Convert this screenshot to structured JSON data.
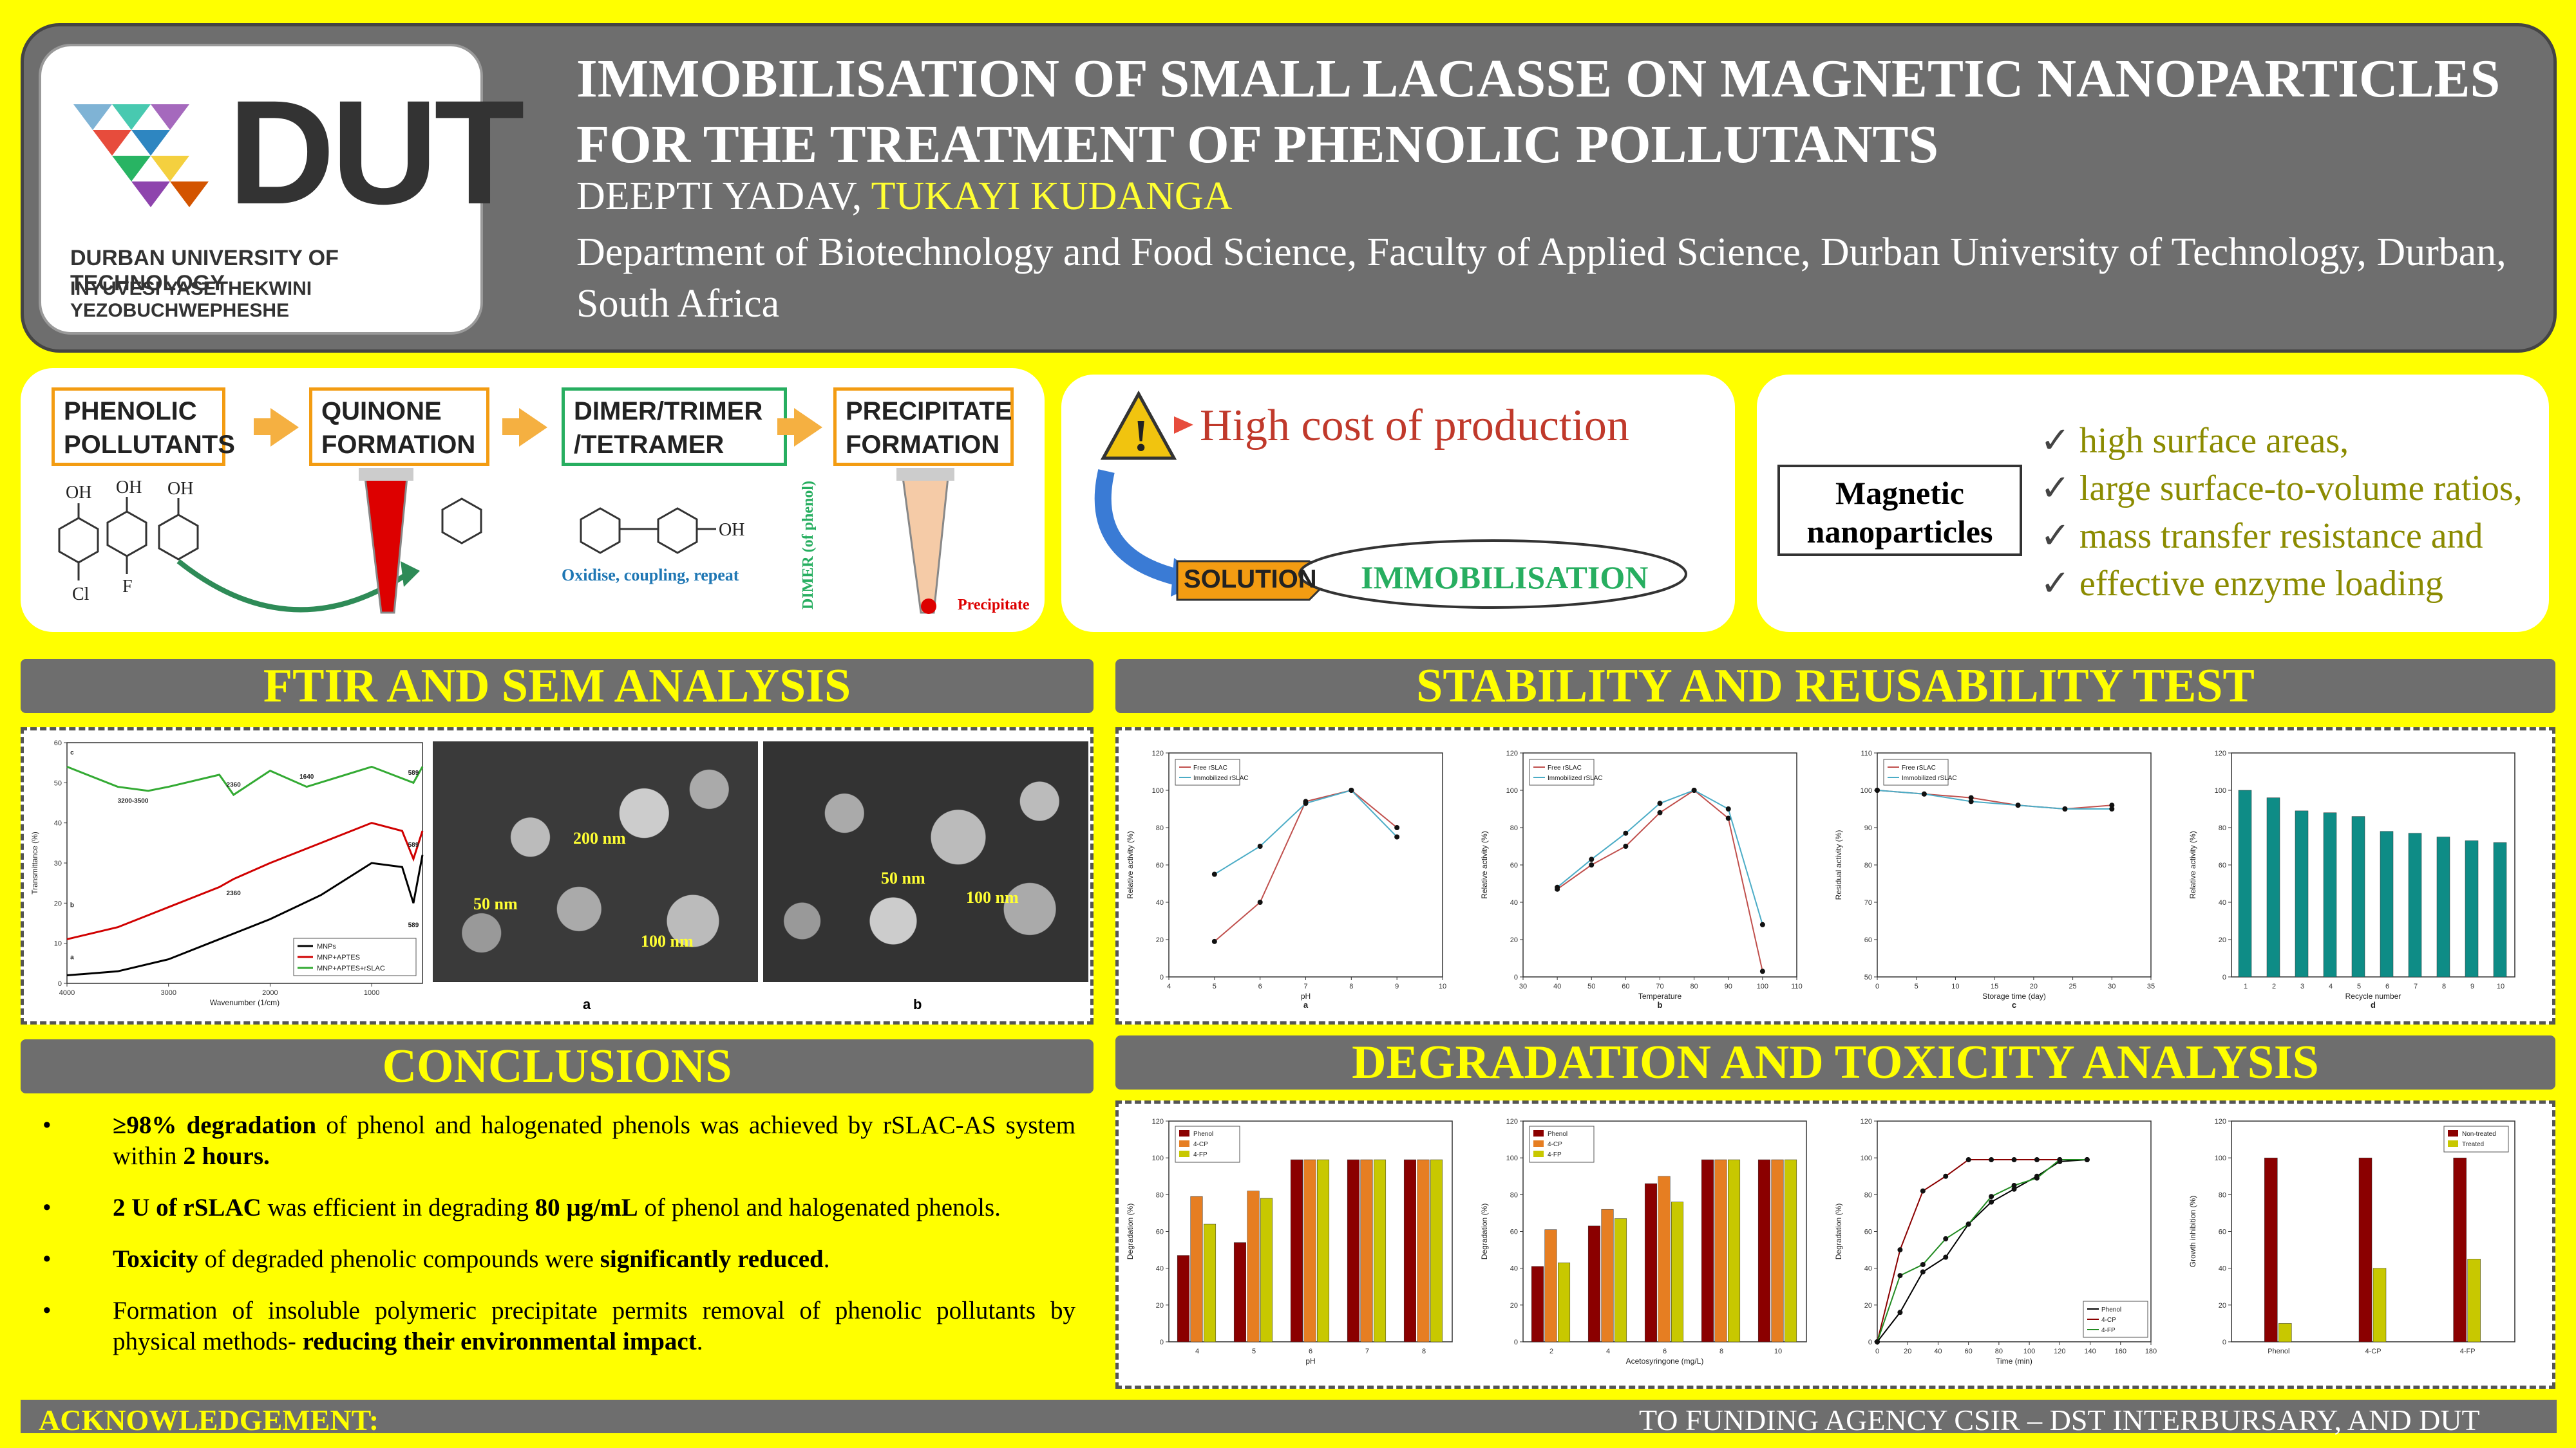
{
  "header": {
    "title_line1": "IMMOBILISATION OF SMALL LACASSE ON MAGNETIC NANOPARTICLES",
    "title_line2": "FOR THE TREATMENT OF PHENOLIC POLLUTANTS",
    "author1": "DEEPTI YADAV,",
    "author2": "TUKAYI KUDANGA",
    "affiliation": "Department of Biotechnology and Food Science, Faculty of Applied Science, Durban University of Technology, Durban, South Africa"
  },
  "logo": {
    "abbr": "DUT",
    "name": "DURBAN UNIVERSITY OF TECHNOLOGY",
    "name_zulu": "INYUVESI YASETHEKWINI YEZOBUCHWEPHESHE"
  },
  "flow": {
    "step1": "PHENOLIC POLLUTANTS",
    "step2": "QUINONE FORMATION",
    "step3": "DIMER/TRIMER /TETRAMER",
    "step4": "PRECIPITATE FORMATION",
    "oxidise": "Oxidise, coupling, repeat",
    "dimer_label": "DIMER (of phenol)",
    "precipitate": "Precipitate",
    "oh": "OH",
    "cl": "Cl",
    "f": "F"
  },
  "problem": {
    "cost": "High cost of production",
    "solution": "SOLUTION",
    "immobilisation": "IMMOBILISATION"
  },
  "nano": {
    "label": "Magnetic nanoparticles",
    "points": [
      "high surface areas,",
      "large surface-to-volume ratios,",
      "mass transfer resistance and",
      "effective enzyme loading"
    ]
  },
  "sections": {
    "ftir": "FTIR AND SEM ANALYSIS",
    "stability": "STABILITY AND REUSABILITY TEST",
    "conclusions": "CONCLUSIONS",
    "degradation": "DEGRADATION AND TOXICITY ANALYSIS"
  },
  "sem": {
    "a_labels": [
      "200 nm",
      "50 nm",
      "100 nm"
    ],
    "b_labels": [
      "50 nm",
      "100 nm"
    ],
    "a": "a",
    "b": "b"
  },
  "chart_data": [
    {
      "type": "line",
      "title": "FTIR",
      "xlabel": "Wavenumber (1/cm)",
      "ylabel": "Transmittance (%)",
      "xlim": [
        4000,
        500
      ],
      "ylim": [
        0,
        60
      ],
      "series": [
        {
          "name": "MNPs",
          "color": "#000000",
          "x": [
            4000,
            3500,
            3000,
            2500,
            2000,
            1500,
            1000,
            700,
            589,
            500
          ],
          "y": [
            2,
            3,
            6,
            11,
            16,
            22,
            30,
            29,
            20,
            32
          ]
        },
        {
          "name": "MNP+APTES",
          "color": "#d00000",
          "x": [
            4000,
            3500,
            3000,
            2500,
            2360,
            2000,
            1500,
            1000,
            700,
            589,
            500
          ],
          "y": [
            11,
            14,
            19,
            24,
            26,
            30,
            35,
            40,
            38,
            31,
            38
          ]
        },
        {
          "name": "MNP+APTES+rSLAC",
          "color": "#33aa33",
          "x": [
            4000,
            3500,
            3200,
            3000,
            2500,
            2360,
            2000,
            1640,
            1000,
            589,
            500
          ],
          "y": [
            54,
            49,
            48,
            49,
            52,
            47,
            53,
            49,
            54,
            50,
            54
          ]
        }
      ],
      "annotations": [
        "3200-3500",
        "2360",
        "1640",
        "589",
        "2360",
        "589",
        "589",
        "c",
        "b",
        "a"
      ],
      "xticks": [
        "4000",
        "3000",
        "2000",
        "1000"
      ],
      "yticks": [
        "0",
        "10",
        "20",
        "30",
        "40",
        "50",
        "60"
      ]
    },
    {
      "type": "line",
      "panel": "a",
      "xlabel": "pH",
      "ylabel": "Relative activity (%)",
      "xlim": [
        4,
        10
      ],
      "ylim": [
        0,
        120
      ],
      "series": [
        {
          "name": "Free rSLAC",
          "color": "#c0504d",
          "x": [
            5,
            6,
            7,
            8,
            9
          ],
          "y": [
            19,
            40,
            94,
            100,
            80
          ]
        },
        {
          "name": "Immobilized rSLAC",
          "color": "#4bacc6",
          "x": [
            5,
            6,
            7,
            8,
            9
          ],
          "y": [
            55,
            70,
            93,
            100,
            75
          ]
        }
      ]
    },
    {
      "type": "line",
      "panel": "b",
      "xlabel": "Temperature",
      "ylabel": "Relative activity (%)",
      "xlim": [
        30,
        110
      ],
      "ylim": [
        0,
        120
      ],
      "series": [
        {
          "name": "Free rSLAC",
          "color": "#c0504d",
          "x": [
            40,
            50,
            60,
            70,
            80,
            90,
            100
          ],
          "y": [
            47,
            60,
            70,
            88,
            100,
            85,
            3
          ]
        },
        {
          "name": "Immobilized rSLAC",
          "color": "#4bacc6",
          "x": [
            40,
            50,
            60,
            70,
            80,
            90,
            100
          ],
          "y": [
            48,
            63,
            77,
            93,
            100,
            90,
            28
          ]
        }
      ]
    },
    {
      "type": "line",
      "panel": "c",
      "xlabel": "Storage time (day)",
      "ylabel": "Residual activity (%)",
      "xlim": [
        0,
        35
      ],
      "ylim": [
        50,
        110
      ],
      "series": [
        {
          "name": "Free rSLAC",
          "color": "#c0504d",
          "x": [
            0,
            6,
            12,
            18,
            24,
            30
          ],
          "y": [
            100,
            99,
            98,
            96,
            95,
            96
          ]
        },
        {
          "name": "Immobilized rSLAC",
          "color": "#4bacc6",
          "x": [
            0,
            6,
            12,
            18,
            24,
            30
          ],
          "y": [
            100,
            99,
            97,
            96,
            95,
            95
          ]
        }
      ]
    },
    {
      "type": "bar",
      "panel": "d",
      "xlabel": "Recycle number",
      "ylabel": "Relative activity (%)",
      "ylim": [
        0,
        120
      ],
      "categories": [
        "1",
        "2",
        "3",
        "4",
        "5",
        "6",
        "7",
        "8",
        "9",
        "10"
      ],
      "values": [
        100,
        96,
        89,
        88,
        86,
        78,
        77,
        75,
        73,
        72
      ]
    },
    {
      "type": "bar",
      "xlabel": "pH",
      "ylabel": "Degradation (%)",
      "ylim": [
        0,
        120
      ],
      "categories": [
        "4",
        "5",
        "6",
        "7",
        "8"
      ],
      "series": [
        {
          "name": "Phenol",
          "color": "#8b0000",
          "values": [
            47,
            54,
            99,
            99,
            99
          ]
        },
        {
          "name": "4-CP",
          "color": "#e67e22",
          "values": [
            79,
            82,
            99,
            99,
            99
          ]
        },
        {
          "name": "4-FP",
          "color": "#c8c800",
          "values": [
            64,
            78,
            99,
            99,
            99
          ]
        }
      ]
    },
    {
      "type": "bar",
      "xlabel": "Acetosyringone (mg/L)",
      "ylabel": "Degradation (%)",
      "ylim": [
        0,
        120
      ],
      "categories": [
        "2",
        "4",
        "6",
        "8",
        "10"
      ],
      "series": [
        {
          "name": "Phenol",
          "color": "#8b0000",
          "values": [
            41,
            63,
            86,
            99,
            99
          ]
        },
        {
          "name": "4-CP",
          "color": "#e67e22",
          "values": [
            61,
            72,
            90,
            99,
            99
          ]
        },
        {
          "name": "4-FP",
          "color": "#c8c800",
          "values": [
            43,
            67,
            76,
            99,
            99
          ]
        }
      ]
    },
    {
      "type": "line",
      "xlabel": "Time (min)",
      "ylabel": "Degradation (%)",
      "xlim": [
        0,
        180
      ],
      "ylim": [
        0,
        120
      ],
      "series": [
        {
          "name": "Phenol",
          "color": "#000000",
          "x": [
            0,
            15,
            30,
            45,
            60,
            75,
            90,
            105,
            120,
            138
          ],
          "y": [
            0,
            16,
            38,
            46,
            64,
            76,
            83,
            90,
            98,
            99
          ]
        },
        {
          "name": "4-CP",
          "color": "#8b0000",
          "x": [
            0,
            15,
            30,
            45,
            60,
            75,
            90,
            105,
            120,
            138
          ],
          "y": [
            0,
            50,
            82,
            90,
            99,
            99,
            99,
            99,
            99,
            99
          ]
        },
        {
          "name": "4-FP",
          "color": "#228b22",
          "x": [
            0,
            15,
            30,
            45,
            60,
            75,
            90,
            105,
            120,
            138
          ],
          "y": [
            0,
            36,
            42,
            56,
            64,
            79,
            85,
            89,
            99,
            99
          ]
        }
      ]
    },
    {
      "type": "bar",
      "xlabel": "",
      "ylabel": "Growth inhibition (%)",
      "ylim": [
        0,
        120
      ],
      "categories": [
        "Phenol",
        "4-CP",
        "4-FP"
      ],
      "series": [
        {
          "name": "Non-treated",
          "color": "#8b0000",
          "values": [
            100,
            100,
            100
          ]
        },
        {
          "name": "Treated",
          "color": "#c8c800",
          "values": [
            10,
            40,
            45
          ]
        }
      ]
    }
  ],
  "conclusions": [
    {
      "b1": "≥98% degradation",
      "t1": " of phenol and halogenated phenols was achieved by rSLAC-AS system within ",
      "b2": "2 hours.",
      "t2": ""
    },
    {
      "b1": "2 U of rSLAC",
      "t1": " was efficient in degrading ",
      "b2": "80 µg/mL",
      "t2": " of phenol and halogenated phenols."
    },
    {
      "b1": "Toxicity",
      "t1": " of degraded phenolic compounds were ",
      "b2": "significantly reduced",
      "t2": "."
    },
    {
      "b1": "",
      "t1": "Formation of insoluble polymeric precipitate permits removal of phenolic pollutants by physical methods- ",
      "b2": "reducing their environmental impact",
      "t2": "."
    }
  ],
  "bullet": "•",
  "footer": {
    "ack": "ACKNOWLEDGEMENT:",
    "funding": "TO FUNDING AGENCY CSIR – DST INTERBURSARY, AND DUT"
  }
}
